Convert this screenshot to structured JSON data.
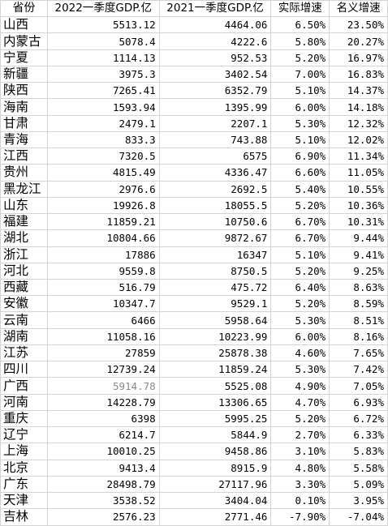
{
  "table": {
    "headers": [
      "省份",
      "2022一季度GDP.亿",
      "2021一季度GDP.亿",
      "实际增速",
      "名义增速"
    ],
    "rows": [
      [
        "山西",
        "5513.12",
        "4464.06",
        "6.50%",
        "23.50%"
      ],
      [
        "内蒙古",
        "5078.4",
        "4222.6",
        "5.80%",
        "20.27%"
      ],
      [
        "宁夏",
        "1114.13",
        "952.53",
        "5.20%",
        "16.97%"
      ],
      [
        "新疆",
        "3975.3",
        "3402.54",
        "7.00%",
        "16.83%"
      ],
      [
        "陕西",
        "7265.41",
        "6352.79",
        "5.10%",
        "14.37%"
      ],
      [
        "海南",
        "1593.94",
        "1395.99",
        "6.00%",
        "14.18%"
      ],
      [
        "甘肃",
        "2479.1",
        "2207.1",
        "5.30%",
        "12.32%"
      ],
      [
        "青海",
        "833.3",
        "743.88",
        "5.10%",
        "12.02%"
      ],
      [
        "江西",
        "7320.5",
        "6575",
        "6.90%",
        "11.34%"
      ],
      [
        "贵州",
        "4815.49",
        "4336.47",
        "6.60%",
        "11.05%"
      ],
      [
        "黑龙江",
        "2976.6",
        "2692.5",
        "5.40%",
        "10.55%"
      ],
      [
        "山东",
        "19926.8",
        "18055.5",
        "5.20%",
        "10.36%"
      ],
      [
        "福建",
        "11859.21",
        "10750.6",
        "6.70%",
        "10.31%"
      ],
      [
        "湖北",
        "10804.66",
        "9872.67",
        "6.70%",
        "9.44%"
      ],
      [
        "浙江",
        "17886",
        "16347",
        "5.10%",
        "9.41%"
      ],
      [
        "河北",
        "9559.8",
        "8750.5",
        "5.20%",
        "9.25%"
      ],
      [
        "西藏",
        "516.79",
        "475.72",
        "6.40%",
        "8.63%"
      ],
      [
        "安徽",
        "10347.7",
        "9529.1",
        "5.20%",
        "8.59%"
      ],
      [
        "云南",
        "6466",
        "5958.64",
        "5.30%",
        "8.51%"
      ],
      [
        "湖南",
        "11058.16",
        "10223.99",
        "6.00%",
        "8.16%"
      ],
      [
        "江苏",
        "27859",
        "25878.38",
        "4.60%",
        "7.65%"
      ],
      [
        "四川",
        "12739.24",
        "11859.24",
        "5.30%",
        "7.42%"
      ],
      [
        "广西",
        "5914.78",
        "5525.08",
        "4.90%",
        "7.05%"
      ],
      [
        "河南",
        "14228.79",
        "13306.65",
        "4.70%",
        "6.93%"
      ],
      [
        "重庆",
        "6398",
        "5995.25",
        "5.20%",
        "6.72%"
      ],
      [
        "辽宁",
        "6214.7",
        "5844.9",
        "2.70%",
        "6.33%"
      ],
      [
        "上海",
        "10010.25",
        "9458.86",
        "3.10%",
        "5.83%"
      ],
      [
        "北京",
        "9413.4",
        "8915.9",
        "4.80%",
        "5.58%"
      ],
      [
        "广东",
        "28498.79",
        "27117.96",
        "3.30%",
        "5.09%"
      ],
      [
        "天津",
        "3538.52",
        "3404.04",
        "0.10%",
        "3.95%"
      ],
      [
        "吉林",
        "2576.23",
        "2771.46",
        "-7.90%",
        "-7.04%"
      ]
    ],
    "grey_cells": [
      [
        22,
        1
      ]
    ]
  }
}
